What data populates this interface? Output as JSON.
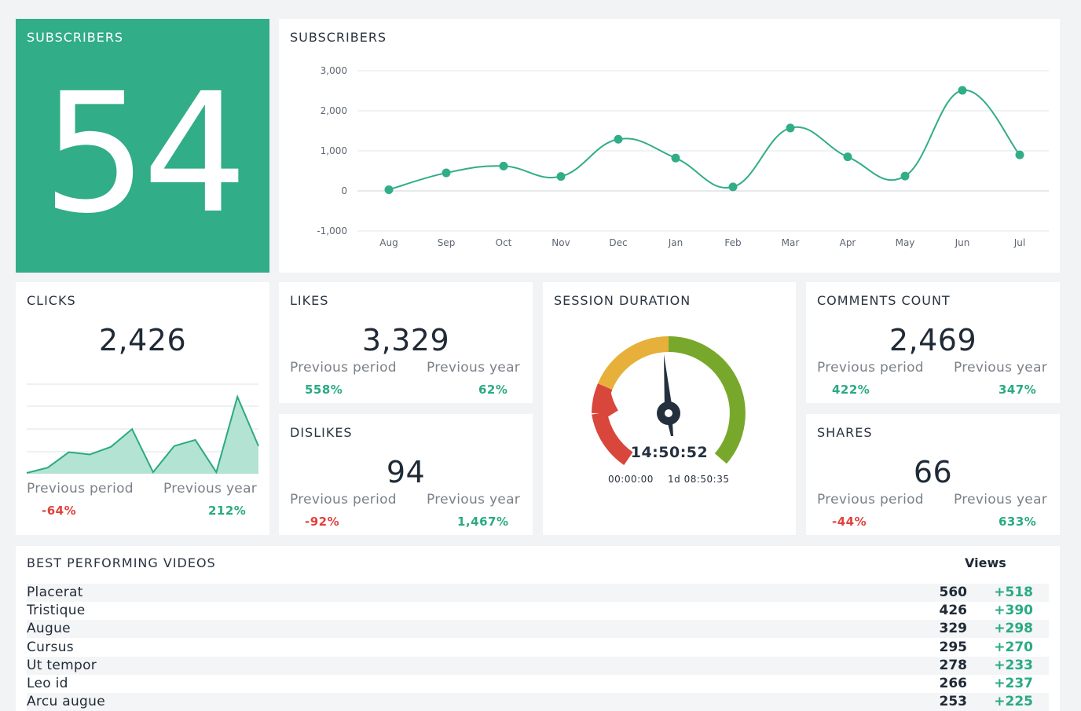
{
  "hero": {
    "title": "SUBSCRIBERS",
    "value": "54"
  },
  "subscribers_chart": {
    "title": "SUBSCRIBERS",
    "accent": "#31ad88"
  },
  "chart_data": [
    {
      "type": "line",
      "title": "SUBSCRIBERS",
      "x": [
        "Aug",
        "Sep",
        "Oct",
        "Nov",
        "Dec",
        "Jan",
        "Feb",
        "Mar",
        "Apr",
        "May",
        "Jun",
        "Jul"
      ],
      "series": [
        {
          "values": [
            30,
            450,
            620,
            360,
            1290,
            820,
            100,
            1570,
            850,
            370,
            2510,
            900
          ]
        }
      ],
      "ylim": [
        -1000,
        3000
      ],
      "yticks": [
        -1000,
        0,
        1000,
        2000,
        3000
      ],
      "ytick_labels": [
        "-1,000",
        "0",
        "1,000",
        "2,000",
        "3,000"
      ],
      "grid": true
    },
    {
      "type": "area",
      "title": "CLICKS",
      "series": [
        {
          "values": [
            1,
            8,
            28,
            25,
            35,
            58,
            2,
            36,
            44,
            2,
            100,
            36
          ]
        }
      ],
      "grid": true
    }
  ],
  "clicks": {
    "title": "CLICKS",
    "value": "2,426",
    "prev_period_label": "Previous period",
    "prev_period_value": "-64%",
    "prev_year_label": "Previous year",
    "prev_year_value": "212%"
  },
  "likes": {
    "title": "LIKES",
    "value": "3,329",
    "prev_period_label": "Previous period",
    "prev_period_value": "558%",
    "prev_year_label": "Previous year",
    "prev_year_value": "62%"
  },
  "dislikes": {
    "title": "DISLIKES",
    "value": "94",
    "prev_period_label": "Previous period",
    "prev_period_value": "-92%",
    "prev_year_label": "Previous year",
    "prev_year_value": "1,467%"
  },
  "session": {
    "title": "SESSION DURATION",
    "value": "14:50:52",
    "min_label": "00:00:00",
    "max_label": "1d 08:50:35",
    "colors": {
      "red": "#d9463b",
      "yellow": "#e6b03a",
      "green": "#78a82b"
    }
  },
  "comments": {
    "title": "COMMENTS COUNT",
    "value": "2,469",
    "prev_period_label": "Previous period",
    "prev_period_value": "422%",
    "prev_year_label": "Previous year",
    "prev_year_value": "347%"
  },
  "shares": {
    "title": "SHARES",
    "value": "66",
    "prev_period_label": "Previous period",
    "prev_period_value": "-44%",
    "prev_year_label": "Previous year",
    "prev_year_value": "633%"
  },
  "videos": {
    "title": "BEST PERFORMING VIDEOS",
    "views_header": "Views",
    "rows": [
      {
        "name": "Placerat",
        "views": "560",
        "delta": "+518"
      },
      {
        "name": "Tristique",
        "views": "426",
        "delta": "+390"
      },
      {
        "name": "Augue",
        "views": "329",
        "delta": "+298"
      },
      {
        "name": "Cursus",
        "views": "295",
        "delta": "+270"
      },
      {
        "name": "Ut tempor",
        "views": "278",
        "delta": "+233"
      },
      {
        "name": "Leo id",
        "views": "266",
        "delta": "+237"
      },
      {
        "name": "Arcu augue",
        "views": "253",
        "delta": "+225"
      }
    ]
  }
}
